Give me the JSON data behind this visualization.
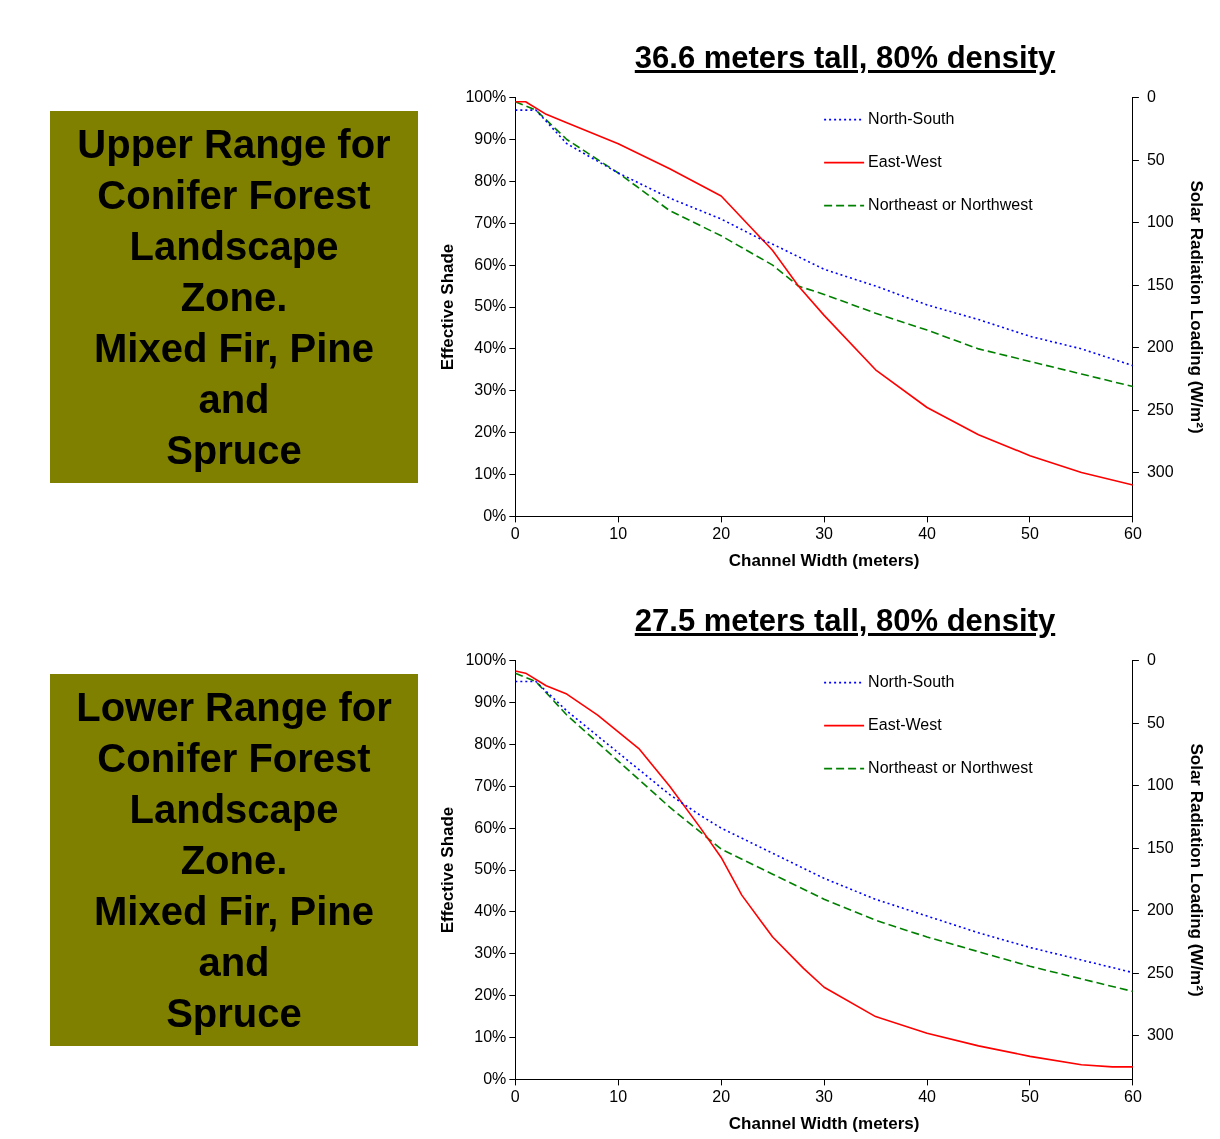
{
  "chart_data": [
    {
      "type": "other",
      "title": "Upper Range for\nConifer Forest\nLandscape\nZone.\nMixed Fir, Pine\nand\nSpruce",
      "color": "#808000"
    },
    {
      "type": "line",
      "title": "36.6 meters tall, 80% density",
      "xlabel": "Channel Width (meters)",
      "ylabel": "Effective Shade",
      "y2label": "Solar Radiation Loading (W/m²)",
      "xlim": [
        0,
        60
      ],
      "xticks": [
        0,
        10,
        20,
        30,
        40,
        50,
        60
      ],
      "ylim": [
        0,
        100
      ],
      "yticks": [
        {
          "value": 0,
          "label": "0%"
        },
        {
          "value": 10,
          "label": "10%"
        },
        {
          "value": 20,
          "label": "20%"
        },
        {
          "value": 30,
          "label": "30%"
        },
        {
          "value": 40,
          "label": "40%"
        },
        {
          "value": 50,
          "label": "50%"
        },
        {
          "value": 60,
          "label": "60%"
        },
        {
          "value": 70,
          "label": "70%"
        },
        {
          "value": 80,
          "label": "80%"
        },
        {
          "value": 90,
          "label": "90%"
        },
        {
          "value": 100,
          "label": "100%"
        }
      ],
      "y2lim": [
        335,
        0
      ],
      "y2ticks": [
        0,
        50,
        100,
        150,
        200,
        250,
        300
      ],
      "grid": false,
      "legend": "top right",
      "marker": "none",
      "series": [
        {
          "name": "North-South",
          "color": "#0000ff",
          "line_style": "dotted",
          "x": [
            0,
            2,
            5,
            10,
            15,
            20,
            24,
            25,
            30,
            35,
            40,
            45,
            50,
            55,
            60
          ],
          "values": [
            97,
            97,
            89,
            82,
            76,
            71,
            66,
            65,
            59,
            55,
            50.5,
            47,
            43,
            40,
            36
          ]
        },
        {
          "name": "East-West",
          "color": "#ff0000",
          "line_style": "solid",
          "x": [
            0,
            1,
            3,
            5,
            10,
            15,
            20,
            25,
            27.5,
            30,
            35,
            40,
            45,
            50,
            55,
            60
          ],
          "values": [
            99,
            99,
            96,
            94,
            89,
            83,
            76.5,
            63.5,
            55,
            48,
            35,
            26,
            19.5,
            14.5,
            10.5,
            7.5
          ]
        },
        {
          "name": "Northeast or Northwest",
          "color": "#008000",
          "line_style": "dashed",
          "x": [
            0,
            1,
            2,
            5,
            10,
            15,
            20,
            25,
            27.5,
            30,
            35,
            40,
            45,
            50,
            55,
            60
          ],
          "values": [
            99,
            98,
            97,
            90,
            82,
            73,
            67,
            60,
            55,
            53,
            48.5,
            44.5,
            40,
            37,
            34,
            31
          ]
        }
      ]
    },
    {
      "type": "other",
      "title": "Lower Range for\nConifer Forest\nLandscape\nZone.\nMixed Fir, Pine\nand\nSpruce",
      "color": "#808000"
    },
    {
      "type": "line",
      "title": "27.5 meters tall, 80% density",
      "xlabel": "Channel Width (meters)",
      "ylabel": "Effective Shade",
      "y2label": "Solar Radiation Loading (W/m²)",
      "xlim": [
        0,
        60
      ],
      "xticks": [
        0,
        10,
        20,
        30,
        40,
        50,
        60
      ],
      "ylim": [
        0,
        100
      ],
      "yticks": [
        {
          "value": 0,
          "label": "0%"
        },
        {
          "value": 10,
          "label": "10%"
        },
        {
          "value": 20,
          "label": "20%"
        },
        {
          "value": 30,
          "label": "30%"
        },
        {
          "value": 40,
          "label": "40%"
        },
        {
          "value": 50,
          "label": "50%"
        },
        {
          "value": 60,
          "label": "60%"
        },
        {
          "value": 70,
          "label": "70%"
        },
        {
          "value": 80,
          "label": "80%"
        },
        {
          "value": 90,
          "label": "90%"
        },
        {
          "value": 100,
          "label": "100%"
        }
      ],
      "y2lim": [
        335,
        0
      ],
      "y2ticks": [
        0,
        50,
        100,
        150,
        200,
        250,
        300
      ],
      "grid": false,
      "legend": "top right",
      "marker": "none",
      "series": [
        {
          "name": "North-South",
          "color": "#0000ff",
          "line_style": "dotted",
          "x": [
            0,
            2,
            5,
            10,
            15,
            18,
            20,
            25,
            30,
            35,
            40,
            45,
            50,
            55,
            60
          ],
          "values": [
            95,
            95,
            88,
            78,
            68,
            63,
            60,
            54,
            48,
            43,
            39,
            35,
            31.5,
            28.5,
            25.5
          ]
        },
        {
          "name": "East-West",
          "color": "#ff0000",
          "line_style": "solid",
          "x": [
            0,
            1,
            3,
            5,
            8,
            10,
            12,
            15,
            18,
            20,
            22,
            25,
            28,
            30,
            35,
            40,
            45,
            50,
            55,
            58,
            60
          ],
          "values": [
            97.5,
            97,
            94,
            92,
            87,
            83,
            79,
            70,
            60,
            53,
            44,
            34,
            26.5,
            22,
            15,
            11,
            8,
            5.5,
            3.5,
            3,
            3
          ]
        },
        {
          "name": "Northeast or Northwest",
          "color": "#008000",
          "line_style": "dashed",
          "x": [
            0,
            2,
            5,
            10,
            15,
            20,
            25,
            30,
            35,
            40,
            45,
            50,
            55,
            60
          ],
          "values": [
            97,
            95,
            87,
            76,
            65,
            55,
            49,
            43,
            38,
            34,
            30.5,
            27,
            24,
            21
          ]
        }
      ]
    }
  ]
}
